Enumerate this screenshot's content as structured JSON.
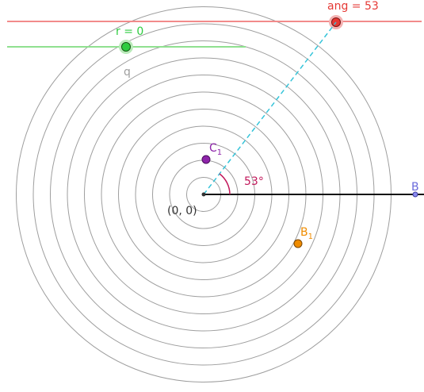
{
  "colors": {
    "background": "#ffffff",
    "circles": "#9e9e9e",
    "angle_slider": "#e53935",
    "radius_slider": "#2ecc40",
    "ray_dash": "#35c4d9",
    "angle_arc": "#c2185b",
    "point_c": "#8e24aa",
    "point_b1": "#ef8c00",
    "point_b": "#6a6adb",
    "axis": "#111111"
  },
  "sliders": {
    "angle": {
      "label": "ang = 53",
      "value": 53,
      "icon": "red-slider-knob"
    },
    "radius": {
      "label": "r = 0",
      "value": 0,
      "icon": "green-slider-knob"
    }
  },
  "labels": {
    "q": "q",
    "origin": "(0, 0)",
    "angle_text": "53°",
    "point_b": "B",
    "point_c_base": "C",
    "point_c_sub": "1",
    "point_b1_base": "B",
    "point_b1_sub": "1"
  },
  "circles": {
    "count": 11,
    "center_label": "(0, 0)"
  }
}
